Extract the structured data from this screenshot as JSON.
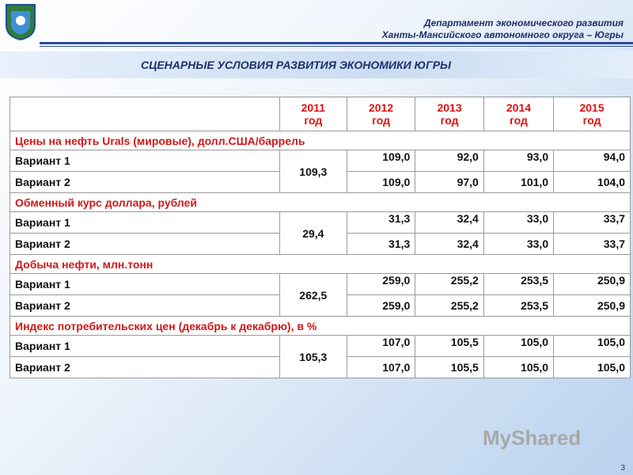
{
  "header": {
    "line1": "Департамент экономического развития",
    "line2": "Ханты-Мансийского автономного округа – Югры"
  },
  "title": "СЦЕНАРНЫЕ УСЛОВИЯ РАЗВИТИЯ ЭКОНОМИКИ ЮГРЫ",
  "table": {
    "columns": [
      {
        "year": "2011",
        "unit": "год"
      },
      {
        "year": "2012",
        "unit": "год"
      },
      {
        "year": "2013",
        "unit": "год"
      },
      {
        "year": "2014",
        "unit": "год"
      },
      {
        "year": "2015",
        "unit": "год"
      }
    ],
    "sections": [
      {
        "title": "Цены на нефть Urals (мировые), долл.США/баррель",
        "base": "109,3",
        "rows": [
          {
            "label": "Вариант 1",
            "values": [
              "109,0",
              "92,0",
              "93,0",
              "94,0"
            ]
          },
          {
            "label": "Вариант 2",
            "values": [
              "109,0",
              "97,0",
              "101,0",
              "104,0"
            ]
          }
        ]
      },
      {
        "title": "Обменный курс доллара, рублей",
        "base": "29,4",
        "rows": [
          {
            "label": "Вариант 1",
            "values": [
              "31,3",
              "32,4",
              "33,0",
              "33,7"
            ]
          },
          {
            "label": "Вариант 2",
            "values": [
              "31,3",
              "32,4",
              "33,0",
              "33,7"
            ]
          }
        ]
      },
      {
        "title": "Добыча нефти, млн.тонн",
        "base": "262,5",
        "rows": [
          {
            "label": "Вариант 1",
            "values": [
              "259,0",
              "255,2",
              "253,5",
              "250,9"
            ]
          },
          {
            "label": "Вариант 2",
            "values": [
              "259,0",
              "255,2",
              "253,5",
              "250,9"
            ]
          }
        ]
      },
      {
        "title": "Индекс потребительских цен (декабрь к декабрю), в %",
        "base": "105,3",
        "rows": [
          {
            "label": "Вариант 1",
            "values": [
              "107,0",
              "105,5",
              "105,0",
              "105,0"
            ]
          },
          {
            "label": "Вариант 2",
            "values": [
              "107,0",
              "105,5",
              "105,0",
              "105,0"
            ]
          }
        ]
      }
    ]
  },
  "watermark": "MyShared",
  "page_number": "3"
}
